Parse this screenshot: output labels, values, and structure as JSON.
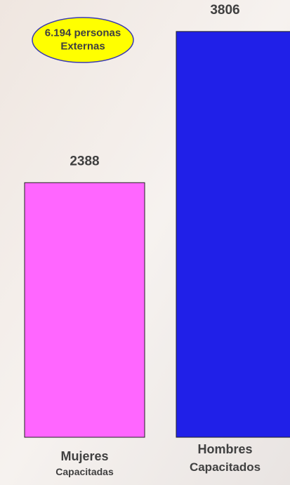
{
  "chart_data": {
    "type": "bar",
    "categories": [
      "Mujeres\nCapacitadas",
      "Hombres\nCapacitados"
    ],
    "series": [
      {
        "values": [
          2388,
          3806
        ],
        "colors": [
          "#ff66ff",
          "#2020e8"
        ]
      }
    ],
    "ylim": [
      0,
      4000
    ],
    "annotation": "6.194 personas\nExternas"
  }
}
